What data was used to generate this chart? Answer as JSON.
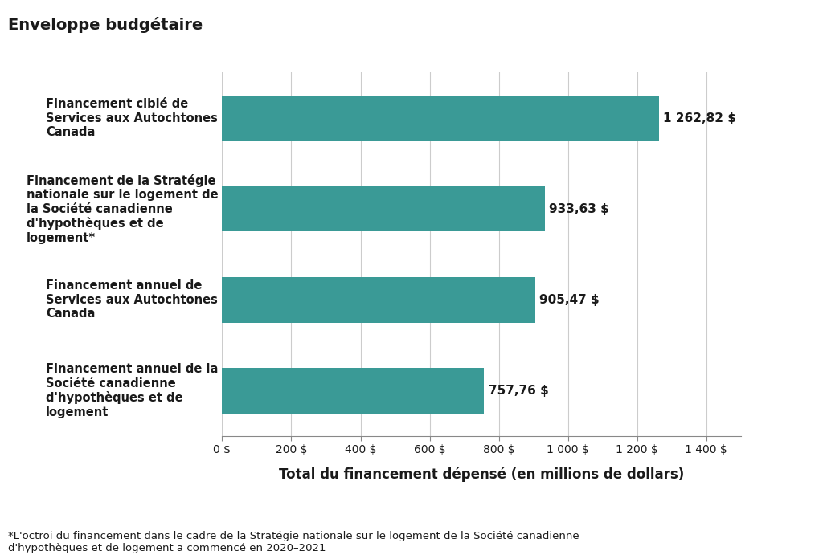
{
  "title": "Enveloppe budgétaire",
  "categories": [
    "Financement annuel de la\nSociété canadienne\nd'hypothèques et de\nlogement",
    "Financement annuel de\nServices aux Autochtones\nCanada",
    "Financement de la Stratégie\nnationale sur le logement de\nla Société canadienne\nd'hypothèques et de\nlogement*",
    "Financement ciblé de\nServices aux Autochtones\nCanada"
  ],
  "values": [
    757.76,
    905.47,
    933.63,
    1262.82
  ],
  "labels": [
    "757,76 $",
    "905,47 $",
    "933,63 $",
    "1 262,82 $"
  ],
  "bar_color": "#3a9a96",
  "xlabel": "Total du financement dépensé (en millions de dollars)",
  "xticks": [
    0,
    200,
    400,
    600,
    800,
    1000,
    1200,
    1400
  ],
  "xtick_labels": [
    "0 $",
    "200 $",
    "400 $",
    "600 $",
    "800 $",
    "1 000 $",
    "1 200 $",
    "1 400 $"
  ],
  "xlim": [
    0,
    1500
  ],
  "footnote": "*L'octroi du financement dans le cadre de la Stratégie nationale sur le logement de la Société canadienne\nd'hypothèques et de logement a commencé en 2020–2021",
  "background_color": "#ffffff",
  "title_fontsize": 14,
  "label_fontsize": 10.5,
  "tick_fontsize": 10,
  "xlabel_fontsize": 12,
  "footnote_fontsize": 9.5,
  "value_label_fontsize": 11
}
